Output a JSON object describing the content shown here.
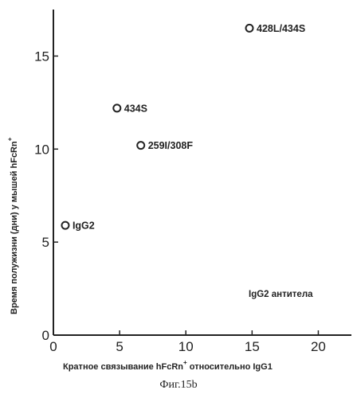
{
  "chart_data": {
    "type": "scatter",
    "xlabel": "Кратное связывание hFcRn",
    "xlabel_sup": "+",
    "xlabel_tail": " относительно IgG1",
    "ylabel": "Время полужизни (дни) у мышей hFcRn",
    "ylabel_sup": "+",
    "xlim": [
      0,
      22.5
    ],
    "ylim": [
      0,
      17.5
    ],
    "xticks": [
      0,
      5,
      10,
      15,
      20
    ],
    "yticks": [
      0,
      5,
      10,
      15
    ],
    "annotation": "IgG2 антитела",
    "points": [
      {
        "label": "428L/434S",
        "x": 14.8,
        "y": 16.5
      },
      {
        "label": "434S",
        "x": 4.8,
        "y": 12.2
      },
      {
        "label": "259I/308F",
        "x": 6.6,
        "y": 10.2
      },
      {
        "label": "IgG2",
        "x": 0.9,
        "y": 5.9
      }
    ]
  },
  "figure_caption": "Фиг.15b"
}
